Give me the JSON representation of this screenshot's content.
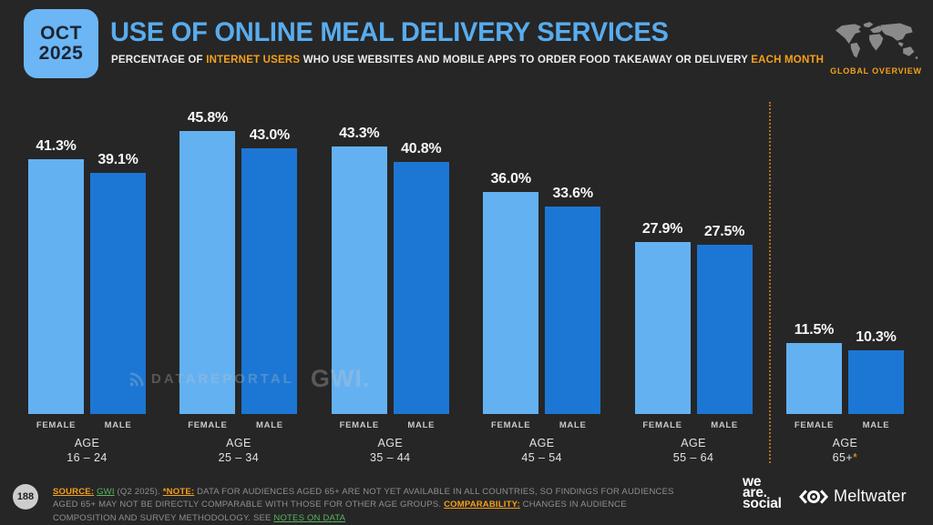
{
  "header": {
    "date_badge": {
      "month": "OCT",
      "year": "2025"
    },
    "title": "USE OF ONLINE MEAL DELIVERY SERVICES",
    "subtitle": {
      "pre": "PERCENTAGE OF ",
      "highlight1": "INTERNET USERS",
      "mid": " WHO USE WEBSITES AND MOBILE APPS TO ORDER FOOD TAKEAWAY OR DELIVERY ",
      "highlight2": "EACH MONTH"
    },
    "overview_label": "GLOBAL OVERVIEW"
  },
  "chart_data": {
    "type": "bar",
    "title": "USE OF ONLINE MEAL DELIVERY SERVICES",
    "categories": [
      "16 – 24",
      "25 – 34",
      "35 – 44",
      "45 – 54",
      "55 – 64",
      "65+*"
    ],
    "category_prefix": "AGE",
    "series": [
      {
        "name": "FEMALE",
        "color": "#64b1f2",
        "values": [
          41.3,
          45.8,
          43.3,
          36.0,
          27.9,
          11.5
        ]
      },
      {
        "name": "MALE",
        "color": "#1c77d4",
        "values": [
          39.1,
          43.0,
          40.8,
          33.6,
          27.5,
          10.3
        ]
      }
    ],
    "value_suffix": "%",
    "ylim": [
      0,
      50
    ],
    "grid": false,
    "legend_position": "below-each-bar",
    "separator_after_group_index": 4
  },
  "watermark": {
    "brand1": "DATAREPORTAL",
    "brand2": "GWI."
  },
  "footer": {
    "page_number": "188",
    "source_label": "SOURCE:",
    "source_link": "GWI",
    "source_rest": "(Q2 2025).",
    "note_label": "*NOTE:",
    "note_text": "DATA FOR AUDIENCES AGED 65+ ARE NOT YET AVAILABLE IN ALL COUNTRIES, SO FINDINGS FOR AUDIENCES AGED 65+ MAY NOT BE DIRECTLY COMPARABLE WITH THOSE FOR OTHER AGE GROUPS.",
    "comparability_label": "COMPARABILITY:",
    "comparability_text": "CHANGES IN AUDIENCE COMPOSITION AND SURVEY METHODOLOGY. SEE",
    "notes_link": "NOTES ON DATA",
    "wearesocial_lines": [
      "we",
      "are.",
      "social"
    ],
    "meltwater_name": "Meltwater"
  },
  "colors": {
    "background": "#262626",
    "title_blue": "#58acee",
    "badge_blue": "#6cb6f5",
    "accent_orange": "#f5a01b",
    "separator_orange": "#b4731f",
    "female_bar": "#64b1f2",
    "male_bar": "#1c77d4",
    "link_green": "#57b560",
    "map_gray": "#8a8a8a"
  }
}
